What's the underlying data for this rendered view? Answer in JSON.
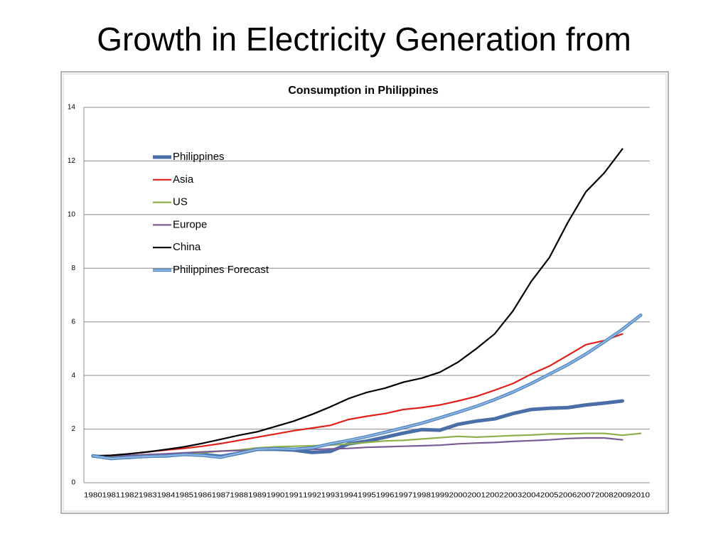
{
  "slide_title": "Growth in Electricity Generation from",
  "chart_data": {
    "type": "line",
    "title": "Consumption in Philippines",
    "categories": [
      "1980",
      "1981",
      "1982",
      "1983",
      "1984",
      "1985",
      "1986",
      "1987",
      "1988",
      "1989",
      "1990",
      "1991",
      "1992",
      "1993",
      "1994",
      "1995",
      "1996",
      "1997",
      "1998",
      "1999",
      "2000",
      "2001",
      "2002",
      "2003",
      "2004",
      "2005",
      "2006",
      "2007",
      "2008",
      "2009",
      "2010"
    ],
    "ylim": [
      0,
      14
    ],
    "yticks": [
      0,
      2,
      4,
      6,
      8,
      10,
      12,
      14
    ],
    "grid": true,
    "legend": "left",
    "series": [
      {
        "name": "Philippines",
        "color": "#4a6ea8",
        "values": [
          1.0,
          0.93,
          0.95,
          1.0,
          1.0,
          1.07,
          1.05,
          0.98,
          1.1,
          1.25,
          1.25,
          1.22,
          1.13,
          1.17,
          1.45,
          1.55,
          1.7,
          1.85,
          1.98,
          1.96,
          2.18,
          2.3,
          2.38,
          2.58,
          2.73,
          2.78,
          2.8,
          2.9,
          2.97,
          3.05,
          null
        ]
      },
      {
        "name": "Asia",
        "color": "#e0201b",
        "values": [
          1.0,
          1.02,
          1.08,
          1.15,
          1.22,
          1.28,
          1.36,
          1.46,
          1.58,
          1.7,
          1.82,
          1.94,
          2.04,
          2.14,
          2.36,
          2.48,
          2.58,
          2.73,
          2.8,
          2.9,
          3.05,
          3.22,
          3.45,
          3.7,
          4.05,
          4.35,
          4.75,
          5.15,
          5.3,
          5.55,
          null
        ]
      },
      {
        "name": "US",
        "color": "#8db04c",
        "values": [
          1.0,
          0.97,
          0.98,
          1.02,
          1.07,
          1.1,
          1.12,
          1.18,
          1.22,
          1.3,
          1.34,
          1.36,
          1.38,
          1.4,
          1.45,
          1.5,
          1.56,
          1.58,
          1.63,
          1.68,
          1.73,
          1.7,
          1.73,
          1.76,
          1.78,
          1.82,
          1.82,
          1.84,
          1.84,
          1.77,
          1.84
        ]
      },
      {
        "name": "Europe",
        "color": "#7a5b94",
        "values": [
          1.0,
          1.0,
          1.02,
          1.05,
          1.08,
          1.12,
          1.15,
          1.18,
          1.2,
          1.22,
          1.24,
          1.25,
          1.24,
          1.26,
          1.28,
          1.32,
          1.34,
          1.36,
          1.38,
          1.4,
          1.45,
          1.48,
          1.5,
          1.54,
          1.57,
          1.6,
          1.65,
          1.67,
          1.67,
          1.6,
          null
        ]
      },
      {
        "name": "China",
        "color": "#000000",
        "values": [
          1.0,
          1.02,
          1.08,
          1.15,
          1.24,
          1.34,
          1.47,
          1.62,
          1.77,
          1.9,
          2.1,
          2.3,
          2.55,
          2.83,
          3.14,
          3.37,
          3.53,
          3.75,
          3.9,
          4.12,
          4.5,
          5.0,
          5.55,
          6.4,
          7.5,
          8.4,
          9.7,
          10.85,
          11.55,
          12.45,
          null
        ]
      },
      {
        "name": "Philippines Forecast",
        "color": "#8fb8e4",
        "values": [
          1.0,
          0.9,
          0.95,
          0.98,
          1.0,
          1.05,
          1.02,
          0.95,
          1.1,
          1.25,
          1.27,
          1.25,
          1.3,
          1.45,
          1.58,
          1.72,
          1.88,
          2.05,
          2.22,
          2.42,
          2.63,
          2.85,
          3.1,
          3.38,
          3.7,
          4.05,
          4.4,
          4.8,
          5.25,
          5.72,
          6.25
        ]
      }
    ]
  }
}
